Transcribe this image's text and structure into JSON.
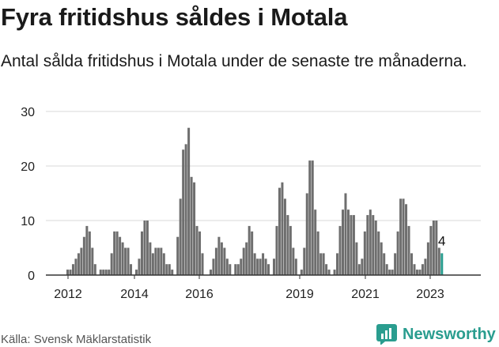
{
  "header": {
    "title": "Fyra fritidshus såldes i Motala",
    "subtitle": "Antal sålda fritidshus i Motala under de senaste tre månaderna."
  },
  "footer": {
    "source": "Källa: Svensk Mäklarstatistik",
    "brand": "Newsworthy"
  },
  "colors": {
    "bar": "#6e6e6e",
    "highlight": "#2a9d8f",
    "grid": "#d9d9d9",
    "axis": "#333333",
    "text": "#222222"
  },
  "icons": {
    "brand_logo": "newsworthy-chart-icon"
  },
  "chart_data": {
    "type": "bar",
    "title": "",
    "xlabel": "",
    "ylabel": "",
    "ylim": [
      0,
      30
    ],
    "yticks": [
      0,
      10,
      20,
      30
    ],
    "xtick_labels": [
      "2012",
      "2014",
      "2016",
      "2019",
      "2021",
      "2023"
    ],
    "grid": true,
    "legend": "none",
    "series": [
      {
        "values": [
          1,
          1,
          2,
          3,
          4,
          5,
          7,
          9,
          8,
          5,
          2,
          0,
          1,
          1,
          1,
          1,
          4,
          8,
          8,
          7,
          6,
          5,
          5,
          2,
          0,
          1,
          3,
          8,
          10,
          10,
          6,
          4,
          5,
          5,
          5,
          4,
          2,
          2,
          1,
          0,
          7,
          14,
          23,
          24,
          27,
          18,
          17,
          9,
          8,
          4,
          0,
          0,
          1,
          3,
          5,
          7,
          6,
          5,
          3,
          2,
          0,
          2,
          2,
          3,
          5,
          6,
          9,
          8,
          4,
          3,
          3,
          4,
          3,
          2,
          0,
          3,
          9,
          16,
          17,
          14,
          11,
          9,
          5,
          3,
          0,
          1,
          5,
          15,
          21,
          21,
          12,
          8,
          4,
          4,
          2,
          1,
          0,
          1,
          4,
          9,
          12,
          15,
          12,
          11,
          11,
          6,
          2,
          3,
          8,
          11,
          12,
          11,
          10,
          8,
          6,
          4,
          2,
          1,
          1,
          4,
          8,
          14,
          14,
          13,
          9,
          4,
          2,
          1,
          1,
          2,
          3,
          6,
          9,
          10,
          10,
          5,
          4
        ],
        "annotation": "4"
      }
    ]
  }
}
